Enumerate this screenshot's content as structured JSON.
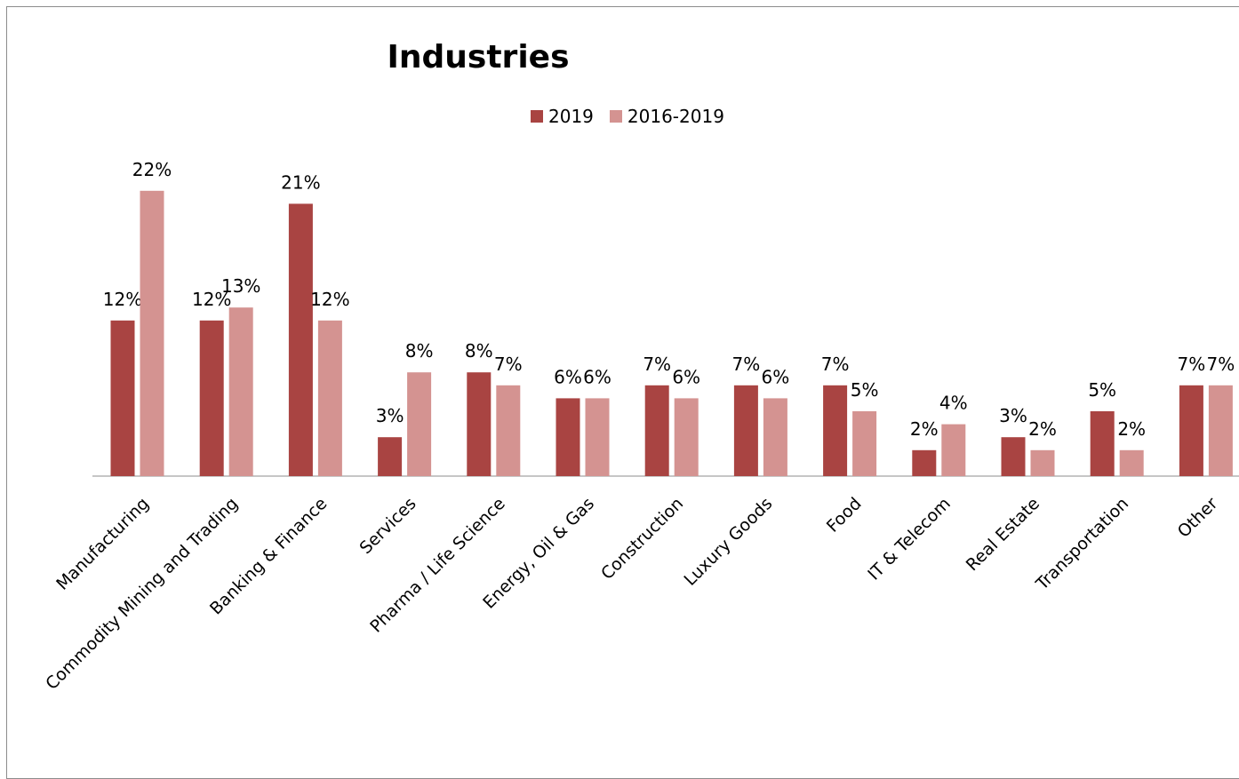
{
  "chart_data": {
    "type": "bar",
    "title": "Industries",
    "categories": [
      "Manufacturing",
      "Commodity Mining and Trading",
      "Banking & Finance",
      "Services",
      "Pharma / Life Science",
      "Energy, Oil & Gas",
      "Construction",
      "Luxury Goods",
      "Food",
      "IT & Telecom",
      "Real Estate",
      "Transportation",
      "Other"
    ],
    "series": [
      {
        "name": "2019",
        "color": "#a94442",
        "values": [
          12,
          12,
          21,
          3,
          8,
          6,
          7,
          7,
          7,
          2,
          3,
          5,
          7
        ]
      },
      {
        "name": "2016-2019",
        "color": "#d49391",
        "values": [
          22,
          13,
          12,
          8,
          7,
          6,
          6,
          6,
          5,
          4,
          2,
          2,
          7
        ]
      }
    ],
    "value_suffix": "%",
    "ylim": [
      0,
      25
    ],
    "legend_position": "top",
    "grid": false
  }
}
